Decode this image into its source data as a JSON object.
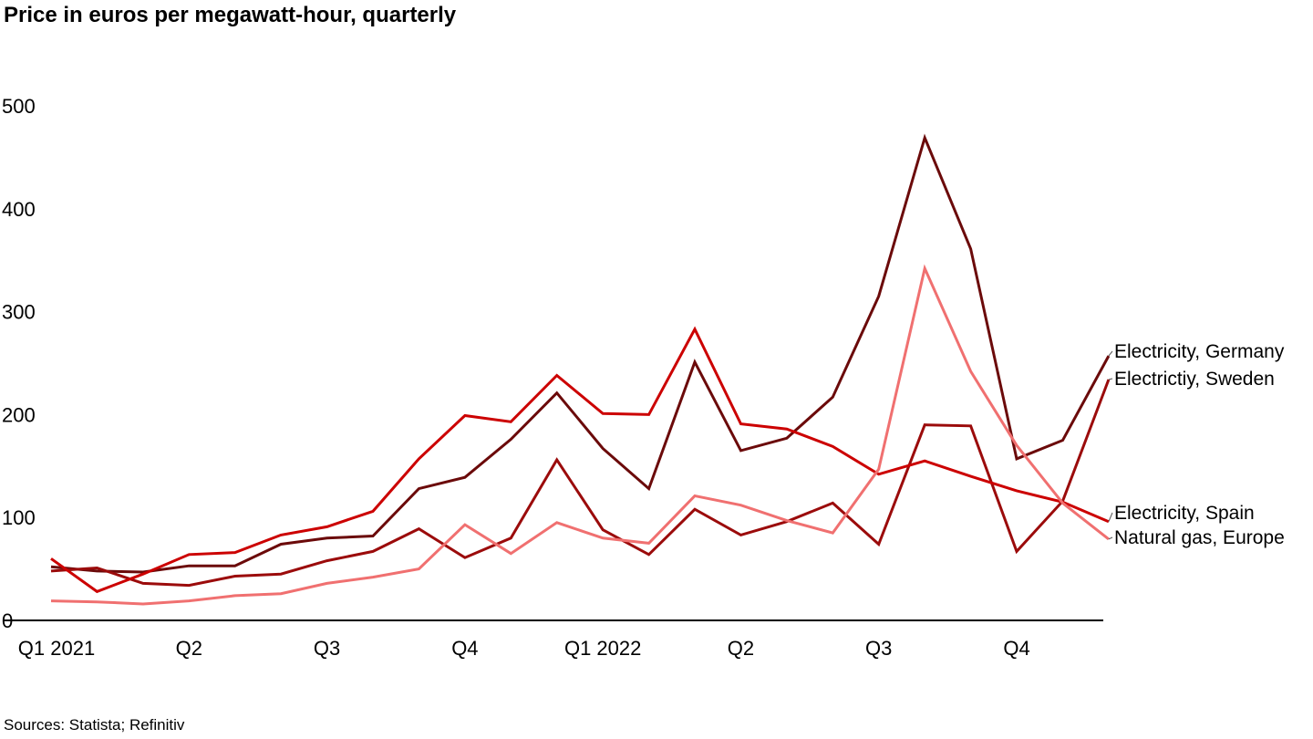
{
  "title": "Price in euros per megawatt-hour, quarterly",
  "source": "Sources: Statista; Refinitiv",
  "chart_data": {
    "type": "line",
    "title": "Price in euros per megawatt-hour, quarterly",
    "xlabel": "",
    "ylabel": "",
    "ylim": [
      0,
      500
    ],
    "yticks": [
      0,
      100,
      200,
      300,
      400,
      500
    ],
    "grid": false,
    "legend": "direct labels at right end of lines",
    "x_tick_labels": [
      "Q1 2021",
      "Q2",
      "Q3",
      "Q4",
      "Q1 2022",
      "Q2",
      "Q3",
      "Q4"
    ],
    "x_tick_indices": [
      0,
      3,
      6,
      9,
      12,
      15,
      18,
      21
    ],
    "series": [
      {
        "name": "Electricity, Germany",
        "color": "#6b0a0a",
        "values": [
          52,
          48,
          47,
          53,
          53,
          74,
          80,
          82,
          128,
          139,
          176,
          221,
          167,
          128,
          251,
          165,
          177,
          217,
          315,
          469,
          361,
          157,
          175,
          257
        ]
      },
      {
        "name": "Electrictiy, Sweden",
        "color": "#9b0b0b",
        "values": [
          48,
          51,
          36,
          34,
          43,
          45,
          58,
          67,
          89,
          61,
          80,
          156,
          88,
          64,
          108,
          83,
          96,
          114,
          74,
          190,
          189,
          67,
          116,
          234
        ]
      },
      {
        "name": "Electricity, Spain",
        "color": "#cc0000",
        "values": [
          60,
          28,
          45,
          64,
          66,
          83,
          91,
          106,
          157,
          199,
          193,
          238,
          201,
          200,
          283,
          191,
          186,
          169,
          142,
          155,
          140,
          126,
          115,
          96
        ]
      },
      {
        "name": "Natural gas, Europe",
        "color": "#f07070",
        "values": [
          19,
          18,
          16,
          19,
          24,
          26,
          36,
          42,
          50,
          93,
          65,
          95,
          80,
          75,
          121,
          112,
          97,
          85,
          147,
          342,
          242,
          170,
          114,
          79
        ]
      }
    ]
  }
}
